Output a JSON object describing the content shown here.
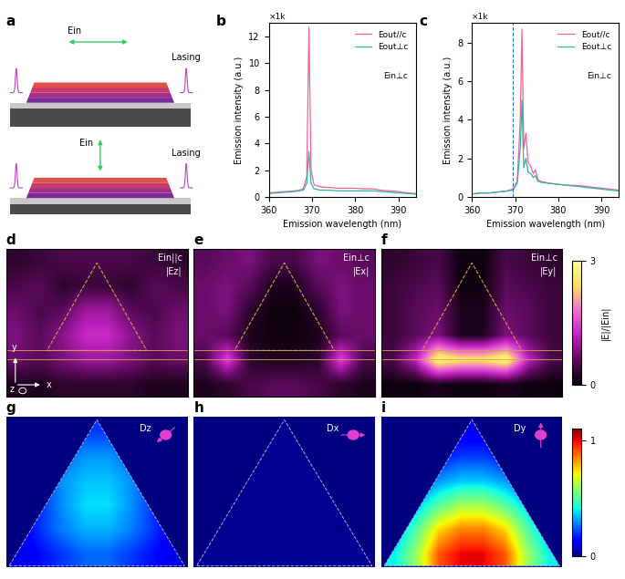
{
  "schematic": {
    "label": "a",
    "parts": [
      {
        "field": "Ein",
        "output": "Lasing"
      },
      {
        "field": "Ein",
        "output": "Lasing"
      }
    ]
  },
  "chart_data": [
    {
      "type": "line",
      "label": "b",
      "xlabel": "Emission wavelength (nm)",
      "ylabel": "Emission intensity (a.u.)",
      "multiplier": "×1k",
      "annotations": [
        "Ein⊥c"
      ],
      "legend": "upper right",
      "x": [
        360,
        362,
        364,
        366,
        367,
        368,
        368.8,
        369.3,
        369.8,
        370.5,
        372,
        374,
        376,
        378,
        380,
        382,
        384,
        386,
        388,
        390,
        392,
        394
      ],
      "series": [
        {
          "name": "Eout//c",
          "color": "#f2609e",
          "values": [
            0.3,
            0.35,
            0.4,
            0.45,
            0.5,
            0.6,
            1.5,
            12.7,
            2.0,
            0.9,
            0.75,
            0.7,
            0.65,
            0.65,
            0.65,
            0.6,
            0.6,
            0.5,
            0.45,
            0.4,
            0.3,
            0.25
          ]
        },
        {
          "name": "Eout⊥c",
          "color": "#2fb59c",
          "values": [
            0.25,
            0.3,
            0.35,
            0.4,
            0.45,
            0.5,
            1.0,
            3.4,
            1.0,
            0.6,
            0.5,
            0.5,
            0.45,
            0.45,
            0.45,
            0.45,
            0.45,
            0.4,
            0.35,
            0.3,
            0.25,
            0.2
          ]
        }
      ],
      "xlim": [
        360,
        394
      ],
      "xticks": [
        360,
        370,
        380,
        390
      ],
      "ylim": [
        0,
        13
      ],
      "yticks": [
        0,
        2,
        4,
        6,
        8,
        10,
        12
      ]
    },
    {
      "type": "line",
      "label": "c",
      "xlabel": "Emission wavelength (nm)",
      "ylabel": "Emission intensity (a.u.)",
      "multiplier": "×1k",
      "annotations": [
        "Ein⊥c"
      ],
      "legend": "upper right",
      "vline": 369.5,
      "x": [
        360,
        362,
        364,
        366,
        368,
        369.5,
        370.5,
        371.2,
        371.6,
        372.0,
        372.5,
        373.0,
        373.6,
        374.2,
        374.7,
        375.3,
        376,
        378,
        380,
        382,
        384,
        386,
        388,
        390,
        392,
        394
      ],
      "series": [
        {
          "name": "Eout//c",
          "color": "#f2609e",
          "values": [
            0.15,
            0.2,
            0.2,
            0.25,
            0.3,
            0.4,
            0.8,
            4.0,
            8.7,
            2.5,
            3.3,
            1.8,
            1.6,
            1.2,
            1.4,
            0.9,
            0.8,
            0.7,
            0.65,
            0.6,
            0.6,
            0.55,
            0.5,
            0.45,
            0.4,
            0.35
          ]
        },
        {
          "name": "Eout⊥c",
          "color": "#2fb59c",
          "values": [
            0.15,
            0.2,
            0.2,
            0.25,
            0.3,
            0.35,
            0.7,
            2.5,
            5.0,
            1.5,
            2.0,
            1.3,
            1.2,
            1.0,
            1.1,
            0.8,
            0.75,
            0.7,
            0.65,
            0.6,
            0.55,
            0.5,
            0.45,
            0.4,
            0.35,
            0.3
          ]
        }
      ],
      "xlim": [
        360,
        394
      ],
      "xticks": [
        360,
        370,
        380,
        390
      ],
      "ylim": [
        0,
        9
      ],
      "yticks": [
        0,
        2,
        4,
        6,
        8
      ]
    },
    {
      "type": "heatmap",
      "label": "d",
      "annotations": [
        "Ein||c",
        "|Ez|"
      ],
      "axis_glyph": [
        "y",
        "x",
        "z"
      ],
      "color_range": [
        0,
        3
      ],
      "cells": [
        [
          0.3,
          0.4,
          0.5,
          0.5,
          0.5,
          0.5,
          0.4,
          0.3
        ],
        [
          0.5,
          0.6,
          0.3,
          0.4,
          0.4,
          0.3,
          0.6,
          0.5
        ],
        [
          0.7,
          0.5,
          0.6,
          1.0,
          1.0,
          0.6,
          0.5,
          0.7
        ],
        [
          0.8,
          0.6,
          0.9,
          1.3,
          1.3,
          0.9,
          0.6,
          0.8
        ],
        [
          0.7,
          0.6,
          0.8,
          1.0,
          1.0,
          0.8,
          0.6,
          0.7
        ],
        [
          0.2,
          0.2,
          0.3,
          0.3,
          0.3,
          0.3,
          0.2,
          0.2
        ]
      ]
    },
    {
      "type": "heatmap",
      "label": "e",
      "annotations": [
        "Ein⊥c",
        "|Ex|"
      ],
      "color_range": [
        0,
        3
      ],
      "cells": [
        [
          0.6,
          0.7,
          0.8,
          0.5,
          0.5,
          0.8,
          0.7,
          0.6
        ],
        [
          0.7,
          0.8,
          0.6,
          0.2,
          0.2,
          0.6,
          0.8,
          0.7
        ],
        [
          0.7,
          0.8,
          0.3,
          0.1,
          0.1,
          0.3,
          0.8,
          0.7
        ],
        [
          0.7,
          0.6,
          0.2,
          0.1,
          0.1,
          0.2,
          0.6,
          0.7
        ],
        [
          0.5,
          1.5,
          0.3,
          0.2,
          0.2,
          0.3,
          1.5,
          0.5
        ],
        [
          0.2,
          0.3,
          0.5,
          0.6,
          0.6,
          0.5,
          0.3,
          0.2
        ]
      ]
    },
    {
      "type": "heatmap",
      "label": "f",
      "annotations": [
        "Ein⊥c",
        "|Ey|"
      ],
      "color_range": [
        0,
        3
      ],
      "colorbar": {
        "ticks": [
          0,
          3
        ],
        "label": "|E|/|Ein|"
      },
      "cells": [
        [
          0.3,
          0.4,
          0.5,
          0.1,
          0.1,
          0.5,
          0.4,
          0.3
        ],
        [
          0.4,
          0.5,
          0.6,
          0.1,
          0.1,
          0.6,
          0.5,
          0.4
        ],
        [
          0.4,
          0.6,
          0.7,
          0.2,
          0.2,
          0.7,
          0.6,
          0.4
        ],
        [
          0.4,
          0.6,
          0.8,
          0.2,
          0.2,
          0.8,
          0.6,
          0.4
        ],
        [
          0.5,
          1.2,
          2.8,
          2.5,
          2.5,
          2.8,
          1.2,
          0.5
        ],
        [
          0.1,
          0.1,
          0.2,
          0.1,
          0.1,
          0.2,
          0.1,
          0.1
        ]
      ]
    },
    {
      "type": "heatmap",
      "label": "g",
      "annotations": [
        "Dz"
      ],
      "color_range": [
        0,
        1.1
      ],
      "cells": [
        [
          0.1,
          0.1,
          0.15,
          0.2,
          0.2,
          0.15,
          0.1,
          0.1
        ],
        [
          0.1,
          0.15,
          0.25,
          0.3,
          0.3,
          0.25,
          0.15,
          0.1
        ],
        [
          0.1,
          0.2,
          0.3,
          0.35,
          0.35,
          0.3,
          0.2,
          0.1
        ],
        [
          0.1,
          0.2,
          0.3,
          0.38,
          0.38,
          0.3,
          0.2,
          0.1
        ],
        [
          0.1,
          0.2,
          0.28,
          0.33,
          0.33,
          0.28,
          0.2,
          0.1
        ],
        [
          0.1,
          0.15,
          0.2,
          0.25,
          0.25,
          0.2,
          0.15,
          0.1
        ]
      ]
    },
    {
      "type": "heatmap",
      "label": "h",
      "annotations": [
        "Dx"
      ],
      "color_range": [
        0,
        1.1
      ],
      "cells": [
        [
          0.02,
          0.02,
          0.02,
          0.02,
          0.02,
          0.02,
          0.02,
          0.02
        ],
        [
          0.02,
          0.02,
          0.02,
          0.02,
          0.02,
          0.02,
          0.02,
          0.02
        ],
        [
          0.02,
          0.02,
          0.02,
          0.02,
          0.02,
          0.02,
          0.02,
          0.02
        ],
        [
          0.02,
          0.02,
          0.02,
          0.02,
          0.02,
          0.02,
          0.02,
          0.02
        ],
        [
          0.02,
          0.02,
          0.02,
          0.02,
          0.02,
          0.02,
          0.02,
          0.02
        ],
        [
          0.02,
          0.02,
          0.02,
          0.02,
          0.02,
          0.02,
          0.02,
          0.02
        ]
      ]
    },
    {
      "type": "heatmap",
      "label": "i",
      "annotations": [
        "Dy"
      ],
      "color_range": [
        0,
        1.1
      ],
      "colorbar": {
        "ticks": [
          0,
          1
        ]
      },
      "cells": [
        [
          0.05,
          0.05,
          0.1,
          0.1,
          0.1,
          0.1,
          0.05,
          0.05
        ],
        [
          0.05,
          0.1,
          0.15,
          0.2,
          0.2,
          0.15,
          0.1,
          0.05
        ],
        [
          0.1,
          0.2,
          0.3,
          0.35,
          0.35,
          0.3,
          0.2,
          0.1
        ],
        [
          0.2,
          0.35,
          0.5,
          0.6,
          0.6,
          0.5,
          0.35,
          0.2
        ],
        [
          0.3,
          0.5,
          0.75,
          0.85,
          0.85,
          0.75,
          0.5,
          0.3
        ],
        [
          0.4,
          0.6,
          0.9,
          1.0,
          1.0,
          0.9,
          0.6,
          0.4
        ]
      ]
    }
  ]
}
